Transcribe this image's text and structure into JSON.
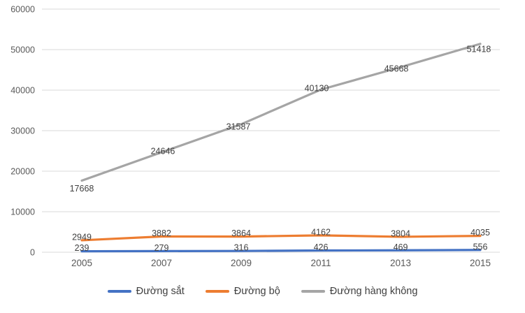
{
  "chart_data": {
    "type": "line",
    "title": "",
    "xlabel": "",
    "ylabel": "",
    "categories": [
      "2005",
      "2007",
      "2009",
      "2011",
      "2013",
      "2015"
    ],
    "series": [
      {
        "id": "duong-sat",
        "name": "Đường sắt",
        "color": "#4472C4",
        "values": [
          239,
          279,
          316,
          426,
          469,
          556
        ]
      },
      {
        "id": "duong-bo",
        "name": "Đường bộ",
        "color": "#ED7D31",
        "values": [
          2949,
          3882,
          3864,
          4162,
          3804,
          4035
        ]
      },
      {
        "id": "duong-hang-khong",
        "name": "Đường hàng không",
        "color": "#A5A5A5",
        "values": [
          17668,
          24646,
          31587,
          40130,
          45668,
          51418
        ]
      }
    ],
    "ylim": [
      0,
      60000
    ],
    "y_tick_labels": [
      "0",
      "10000",
      "20000",
      "30000",
      "40000",
      "50000",
      "60000"
    ],
    "grid": true,
    "data_labels": true,
    "legend_position": "bottom"
  },
  "colors": {
    "grid": "#D9D9D9",
    "tick_text": "#595959",
    "data_label_text": "#404040",
    "background": "#FFFFFF"
  }
}
